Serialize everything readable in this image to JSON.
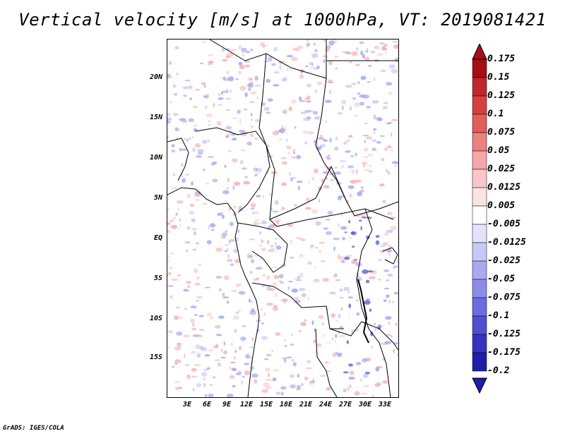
{
  "title": "Vertical velocity [m/s] at 1000hPa, VT: 2019081421",
  "credit": "GrADS: IGES/COLA",
  "lat_labels": [
    "20N",
    "15N",
    "10N",
    "5N",
    "EQ",
    "5S",
    "10S",
    "15S"
  ],
  "lon_labels": [
    "3E",
    "6E",
    "9E",
    "12E",
    "15E",
    "18E",
    "21E",
    "24E",
    "27E",
    "30E",
    "33E"
  ],
  "colorbar": {
    "labels": [
      "0.175",
      "0.15",
      "0.125",
      "0.1",
      "0.075",
      "0.05",
      "0.025",
      "0.0125",
      "0.005",
      "-0.005",
      "-0.0125",
      "-0.025",
      "-0.05",
      "-0.075",
      "-0.1",
      "-0.125",
      "-0.175",
      "-0.2"
    ],
    "colors": [
      "#a50f15",
      "#c0272d",
      "#d73f3f",
      "#e45c5c",
      "#ee8080",
      "#f5a6a6",
      "#f9c7c7",
      "#fde2e2",
      "#ffffff",
      "#e2e2fd",
      "#c8c8f8",
      "#a9a9f2",
      "#8b8bea",
      "#6c6ce0",
      "#4f4fd3",
      "#3333c2",
      "#1e1ea8"
    ],
    "top_color": "#a50f15",
    "bottom_color": "#1e1ea8"
  },
  "map": {
    "region": "Central Africa",
    "lon_range": [
      0,
      35
    ],
    "lat_range": [
      -20,
      25
    ],
    "field_colors": {
      "positive": "#f4a9a9",
      "negative": "#9f9ff0",
      "strong_negative": "#4b4bd6"
    }
  }
}
